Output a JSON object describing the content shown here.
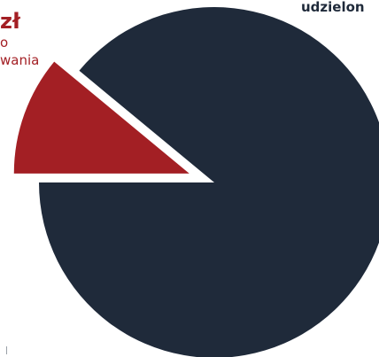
{
  "chart_data": {
    "type": "pie",
    "exploded": "red slice",
    "slices": [
      {
        "label": "udzielon",
        "value": 89,
        "color": "#1f2a3a"
      },
      {
        "label": "zł",
        "value": 11,
        "color": "#a31f24"
      }
    ]
  },
  "labels": {
    "red_amount": "zł",
    "red_line1": "o",
    "red_line2": "wania",
    "dark_label": "udzielon"
  }
}
